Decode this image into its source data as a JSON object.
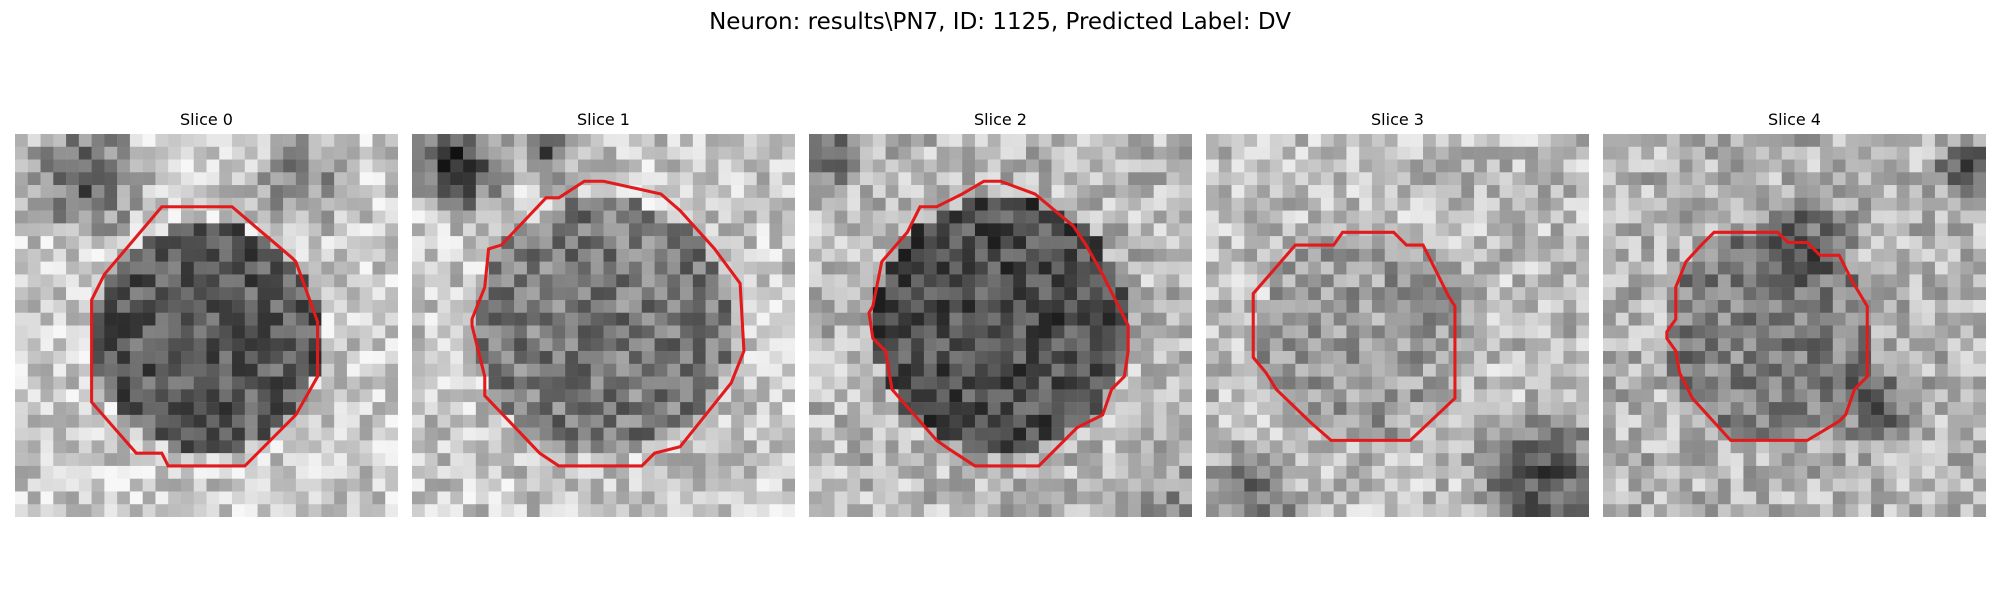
{
  "figure": {
    "title": "Neuron: results\\PN7, ID: 1125, Predicted Label: DV"
  },
  "panels": [
    {
      "title": "Slice 0"
    },
    {
      "title": "Slice 1"
    },
    {
      "title": "Slice 2"
    },
    {
      "title": "Slice 3"
    },
    {
      "title": "Slice 4"
    }
  ],
  "colors": {
    "contour": "#e31a1c",
    "background": "#ffffff"
  }
}
